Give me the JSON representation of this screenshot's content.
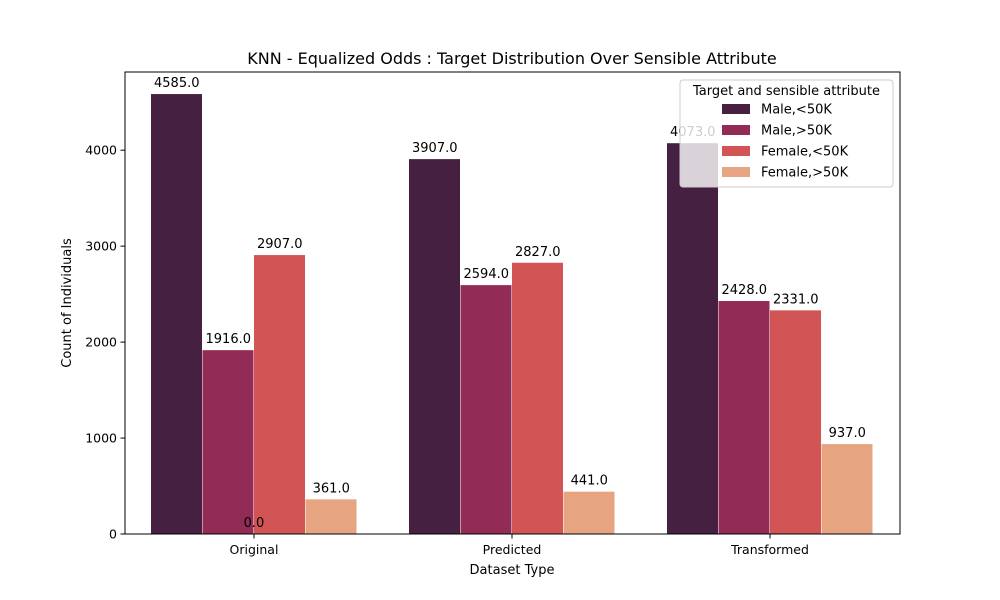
{
  "chart_data": {
    "type": "bar",
    "title": "KNN - Equalized Odds : Target Distribution Over Sensible Attribute",
    "xlabel": "Dataset Type",
    "ylabel": "Count of Individuals",
    "categories": [
      "Original",
      "Predicted",
      "Transformed"
    ],
    "ylim": [
      0,
      4815
    ],
    "yticks": [
      0,
      1000,
      2000,
      3000,
      4000
    ],
    "grid": false,
    "legend": {
      "title": "Target and sensible attribute",
      "placement": "top-right"
    },
    "series": [
      {
        "name": "Male,<50K",
        "values": [
          4585.0,
          3907.0,
          4073.0
        ],
        "color": "#452040"
      },
      {
        "name": "Male,>50K",
        "values": [
          1916.0,
          2594.0,
          2428.0
        ],
        "color": "#922b56"
      },
      {
        "name": "Female,<50K",
        "values": [
          2907.0,
          2827.0,
          2331.0
        ],
        "color": "#d25454"
      },
      {
        "name": "Female,>50K",
        "values": [
          361.0,
          441.0,
          937.0
        ],
        "color": "#e6a480"
      }
    ],
    "extra_labels": [
      {
        "text": "0.0",
        "category_index": 0,
        "value": 0
      }
    ]
  }
}
